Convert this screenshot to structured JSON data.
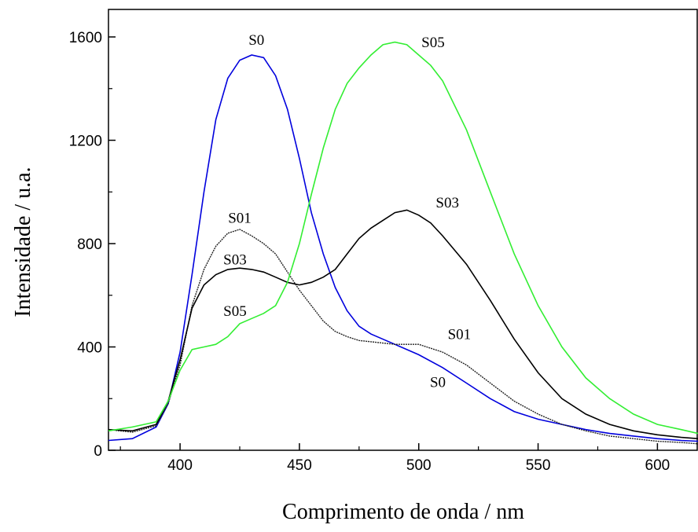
{
  "chart_data": {
    "type": "line",
    "xlabel": "Comprimento de onda / nm",
    "ylabel": "Intensidade / u.a.",
    "xlim": [
      370,
      617
    ],
    "ylim": [
      0,
      1600
    ],
    "x_ticks": [
      "400",
      "450",
      "500",
      "550",
      "600"
    ],
    "y_ticks": [
      "0",
      "400",
      "800",
      "1200",
      "1600"
    ],
    "series": [
      {
        "name": "S0",
        "color": "#0000dd",
        "x": [
          370,
          380,
          390,
          395,
          400,
          405,
          410,
          415,
          420,
          425,
          430,
          435,
          440,
          445,
          450,
          455,
          460,
          465,
          470,
          475,
          480,
          490,
          500,
          510,
          520,
          530,
          540,
          550,
          560,
          570,
          580,
          590,
          600,
          610,
          617
        ],
        "y": [
          38,
          45,
          90,
          180,
          380,
          680,
          1000,
          1280,
          1440,
          1510,
          1530,
          1520,
          1450,
          1320,
          1130,
          920,
          760,
          630,
          540,
          480,
          450,
          410,
          370,
          320,
          260,
          200,
          150,
          120,
          100,
          80,
          65,
          55,
          45,
          38,
          35
        ]
      },
      {
        "name": "S01",
        "color": "#222222",
        "x": [
          370,
          380,
          390,
          395,
          400,
          405,
          410,
          415,
          420,
          425,
          430,
          435,
          440,
          445,
          450,
          455,
          460,
          465,
          470,
          475,
          480,
          490,
          500,
          510,
          520,
          530,
          540,
          550,
          560,
          570,
          580,
          590,
          600,
          610,
          617
        ],
        "y": [
          80,
          70,
          95,
          180,
          330,
          560,
          700,
          790,
          840,
          855,
          830,
          800,
          760,
          690,
          620,
          560,
          500,
          460,
          440,
          425,
          420,
          410,
          410,
          380,
          330,
          260,
          190,
          140,
          100,
          75,
          55,
          45,
          35,
          30,
          25
        ]
      },
      {
        "name": "S03",
        "color": "#000000",
        "x": [
          370,
          380,
          390,
          395,
          400,
          405,
          410,
          415,
          420,
          425,
          430,
          435,
          440,
          445,
          450,
          455,
          460,
          465,
          470,
          475,
          480,
          485,
          490,
          495,
          500,
          505,
          510,
          520,
          530,
          540,
          550,
          560,
          570,
          580,
          590,
          600,
          610,
          617
        ],
        "y": [
          80,
          75,
          100,
          190,
          350,
          550,
          640,
          680,
          700,
          705,
          700,
          690,
          670,
          650,
          640,
          650,
          670,
          700,
          760,
          820,
          860,
          890,
          920,
          930,
          910,
          880,
          830,
          720,
          580,
          430,
          300,
          200,
          140,
          100,
          75,
          60,
          50,
          45
        ]
      },
      {
        "name": "S05",
        "color": "#33ee33",
        "x": [
          370,
          380,
          390,
          395,
          400,
          405,
          410,
          415,
          420,
          425,
          430,
          435,
          440,
          445,
          450,
          455,
          460,
          465,
          470,
          475,
          480,
          485,
          490,
          495,
          500,
          505,
          510,
          520,
          530,
          540,
          550,
          560,
          570,
          580,
          590,
          600,
          610,
          617
        ],
        "y": [
          75,
          90,
          110,
          190,
          310,
          390,
          400,
          410,
          440,
          490,
          510,
          530,
          560,
          650,
          800,
          990,
          1170,
          1320,
          1420,
          1480,
          1530,
          1570,
          1580,
          1570,
          1530,
          1490,
          1430,
          1240,
          1000,
          760,
          560,
          400,
          280,
          200,
          140,
          100,
          80,
          65
        ]
      }
    ],
    "annotations": [
      {
        "text": "S0",
        "x": 432,
        "y": 1570
      },
      {
        "text": "S05",
        "x": 506,
        "y": 1560
      },
      {
        "text": "S03",
        "x": 512,
        "y": 940
      },
      {
        "text": "S01",
        "x": 425,
        "y": 880
      },
      {
        "text": "S03",
        "x": 423,
        "y": 720
      },
      {
        "text": "S05",
        "x": 423,
        "y": 520
      },
      {
        "text": "S01",
        "x": 517,
        "y": 430
      },
      {
        "text": "S0",
        "x": 508,
        "y": 245
      }
    ]
  }
}
